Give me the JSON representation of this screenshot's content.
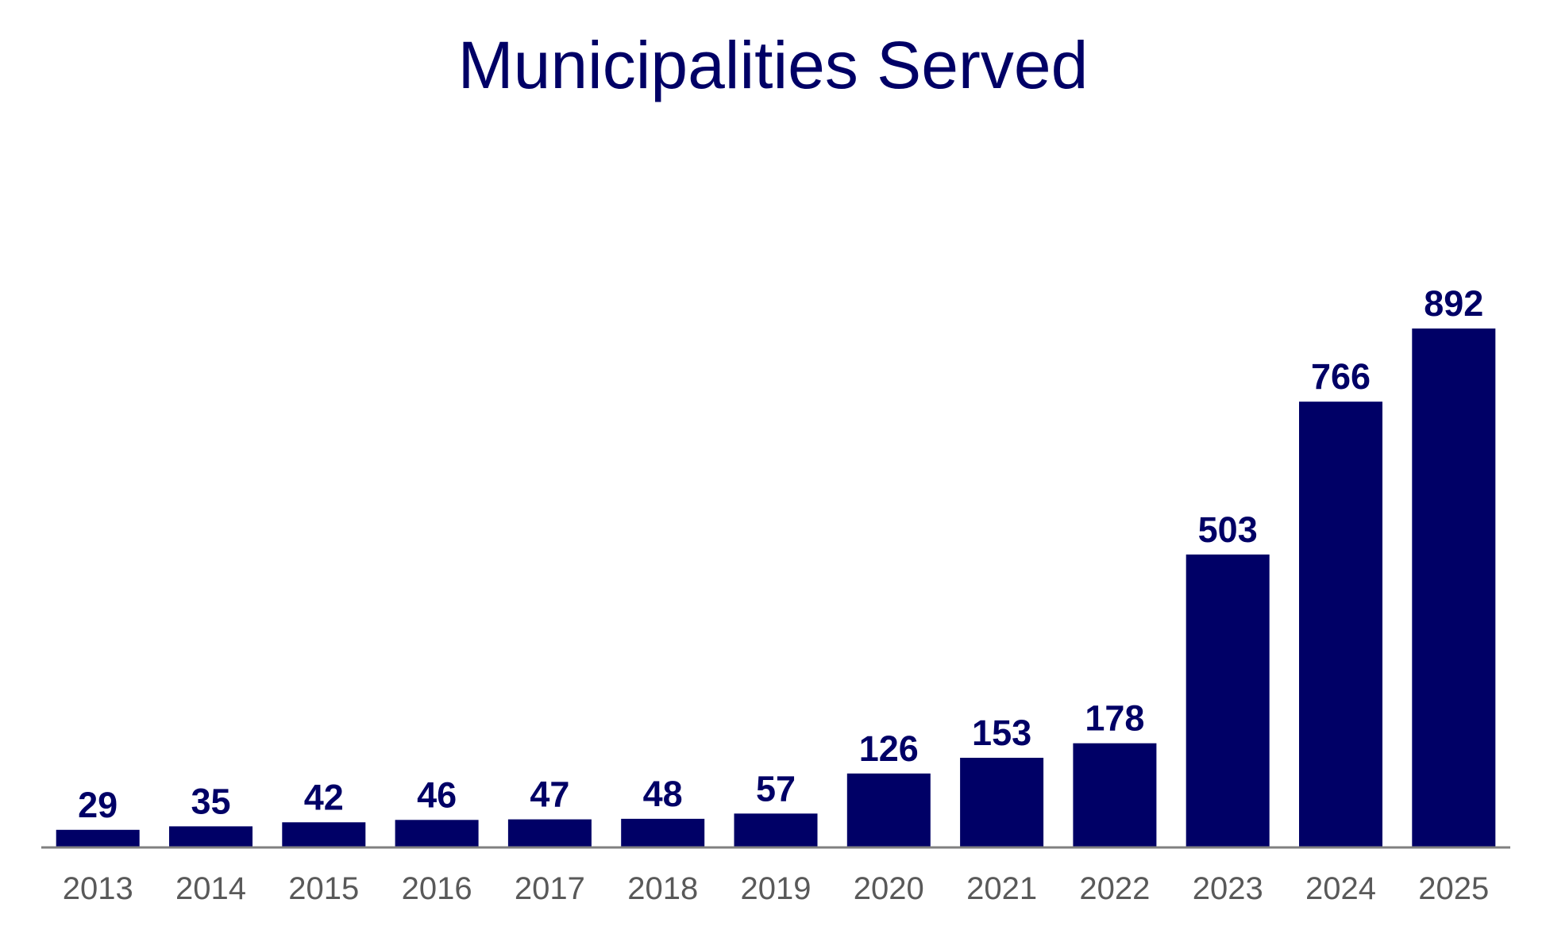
{
  "chart_data": {
    "type": "bar",
    "title": "Municipalities Served",
    "xlabel": "",
    "ylabel": "",
    "categories": [
      "2013",
      "2014",
      "2015",
      "2016",
      "2017",
      "2018",
      "2019",
      "2020",
      "2021",
      "2022",
      "2023",
      "2024",
      "2025"
    ],
    "values": [
      29,
      35,
      42,
      46,
      47,
      48,
      57,
      126,
      153,
      178,
      503,
      766,
      892
    ],
    "ylim": [
      0,
      892
    ],
    "grid": false,
    "legend": "none",
    "data_labels": true,
    "colors": {
      "bar": "#000066",
      "title": "#000066",
      "data_label": "#000066",
      "tick_label": "#595959",
      "axis": "#808080"
    }
  }
}
